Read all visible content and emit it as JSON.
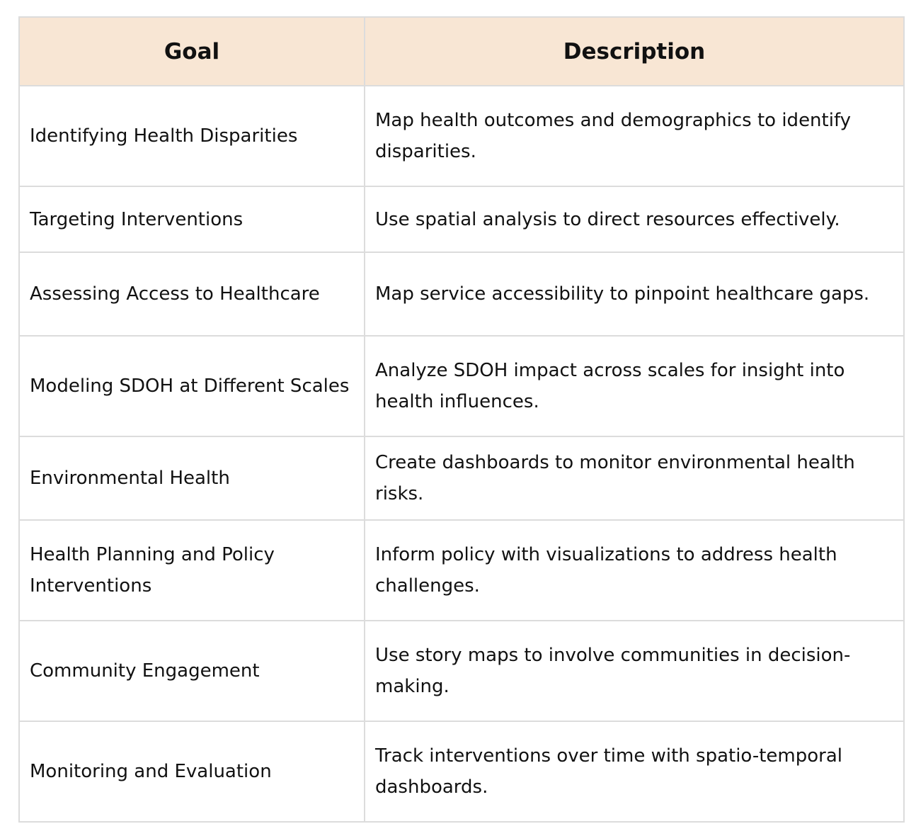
{
  "table": {
    "headers": {
      "goal": "Goal",
      "description": "Description"
    },
    "rows": [
      {
        "goal": "Identifying Health Disparities",
        "description": "Map health outcomes and demographics to identify disparities."
      },
      {
        "goal": "Targeting Interventions",
        "description": "Use spatial analysis to direct resources effectively."
      },
      {
        "goal": "Assessing Access to Healthcare",
        "description": "Map service accessibility to pinpoint healthcare gaps."
      },
      {
        "goal": "Modeling SDOH at Different Scales",
        "description": "Analyze SDOH impact across scales for insight into health influences."
      },
      {
        "goal": "Environmental Health",
        "description": "Create dashboards to monitor environmental health risks."
      },
      {
        "goal": "Health Planning and Policy Interventions",
        "description": "Inform policy with visualizations to address health challenges."
      },
      {
        "goal": "Community Engagement",
        "description": "Use story maps to involve communities in decision-making."
      },
      {
        "goal": "Monitoring and Evaluation",
        "description": "Track interventions over time with spatio-temporal dashboards."
      }
    ]
  }
}
